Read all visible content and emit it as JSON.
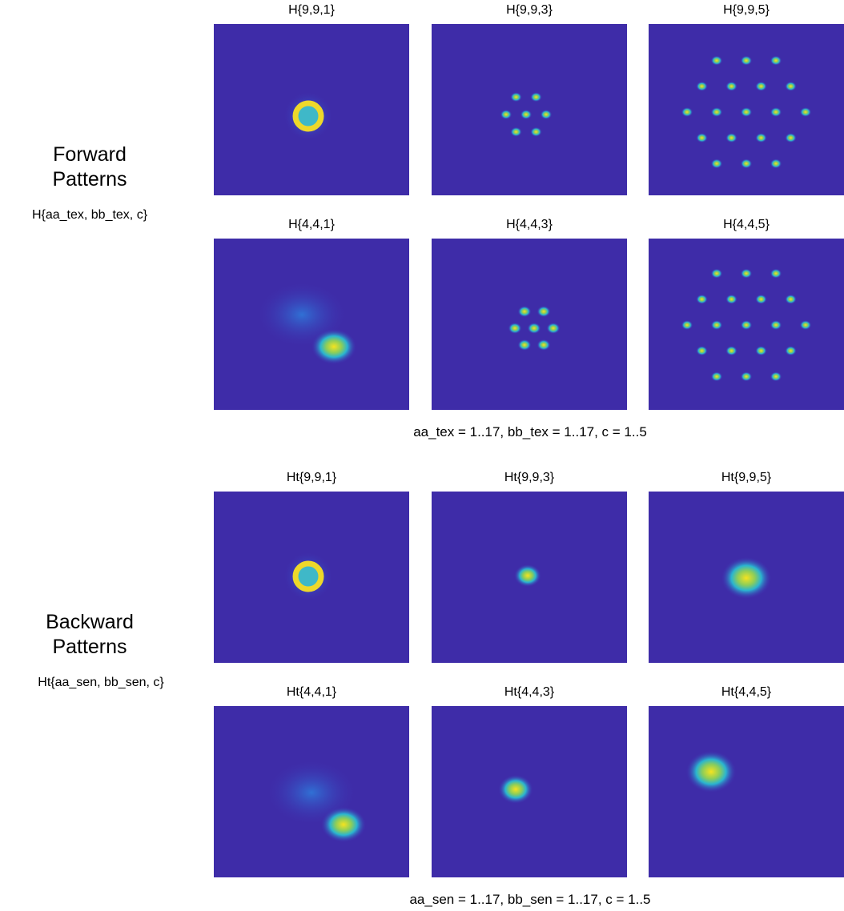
{
  "sections": [
    {
      "label": "Forward Patterns",
      "sublabel": "H{aa_tex, bb_tex, c}",
      "rows": [
        [
          "H{9,9,1}",
          "H{9,9,3}",
          "H{9,9,5}"
        ],
        [
          "H{4,4,1}",
          "H{4,4,3}",
          "H{4,4,5}"
        ]
      ],
      "range": "aa_tex = 1..17, bb_tex = 1..17, c = 1..5"
    },
    {
      "label": "Backward Patterns",
      "sublabel": "Ht{aa_sen, bb_sen, c}",
      "rows": [
        [
          "Ht{9,9,1}",
          "Ht{9,9,3}",
          "Ht{9,9,5}"
        ],
        [
          "Ht{4,4,1}",
          "Ht{4,4,3}",
          "Ht{4,4,5}"
        ]
      ],
      "range": "aa_sen = 1..17, bb_sen = 1..17, c = 1..5"
    }
  ]
}
